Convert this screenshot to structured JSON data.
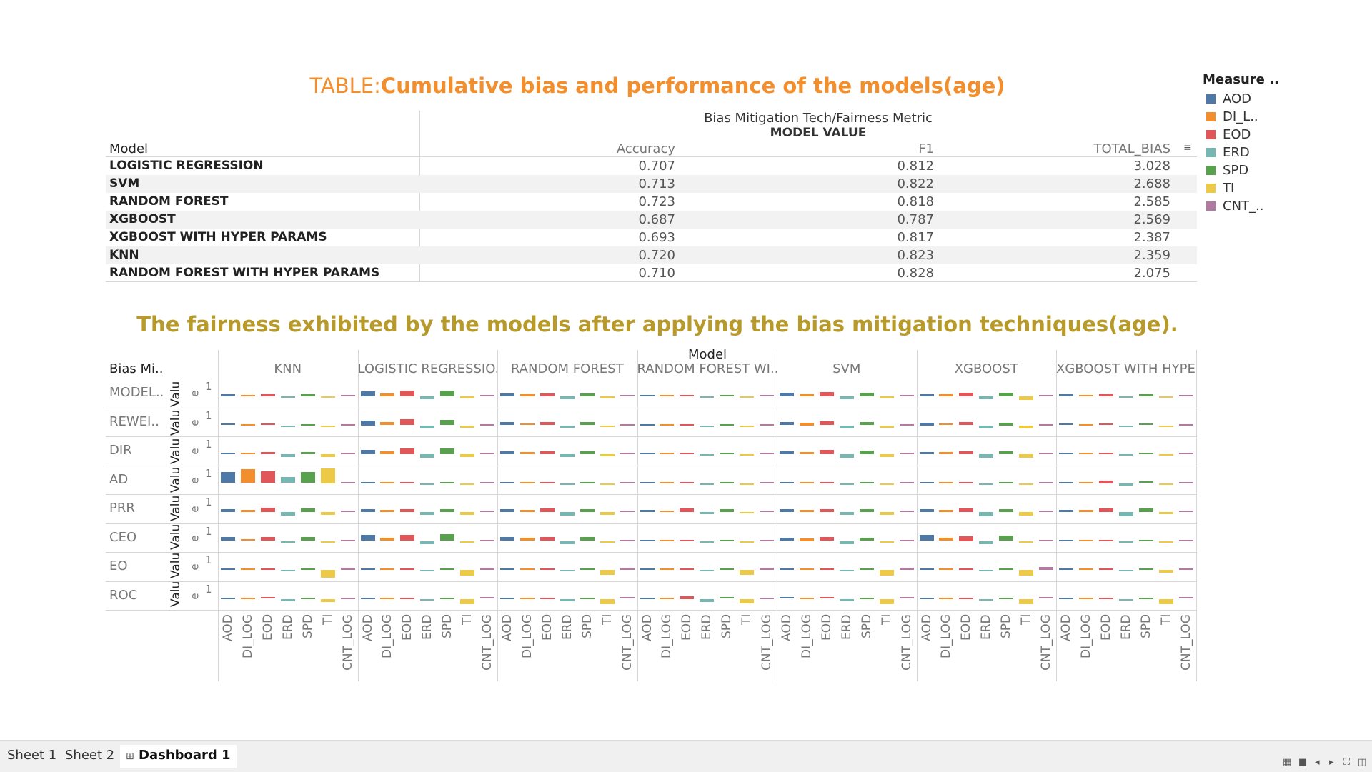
{
  "table": {
    "title_prefix": "TABLE:",
    "title_main": "Cumulative bias and performance of the models(age)",
    "header_line1": "Bias Mitigation Tech/Fairness Metric",
    "header_line2": "MODEL VALUE",
    "row_header": "Model",
    "columns": [
      "Accuracy",
      "F1",
      "TOTAL_BIAS"
    ],
    "sort_icon": "sort-descending-icon",
    "rows": [
      {
        "model": "LOGISTIC REGRESSION",
        "accuracy": "0.707",
        "f1": "0.812",
        "total_bias": "3.028"
      },
      {
        "model": "SVM",
        "accuracy": "0.713",
        "f1": "0.822",
        "total_bias": "2.688"
      },
      {
        "model": "RANDOM FOREST",
        "accuracy": "0.723",
        "f1": "0.818",
        "total_bias": "2.585"
      },
      {
        "model": "XGBOOST",
        "accuracy": "0.687",
        "f1": "0.787",
        "total_bias": "2.569"
      },
      {
        "model": "XGBOOST WITH HYPER PARAMS",
        "accuracy": "0.693",
        "f1": "0.817",
        "total_bias": "2.387"
      },
      {
        "model": "KNN",
        "accuracy": "0.720",
        "f1": "0.823",
        "total_bias": "2.359"
      },
      {
        "model": "RANDOM FOREST WITH HYPER PARAMS",
        "accuracy": "0.710",
        "f1": "0.828",
        "total_bias": "2.075"
      }
    ]
  },
  "legend": {
    "title": "Measure ..",
    "items": [
      {
        "label": "AOD",
        "color": "#4e79a7"
      },
      {
        "label": "DI_L..",
        "color": "#f28e2b"
      },
      {
        "label": "EOD",
        "color": "#e15759"
      },
      {
        "label": "ERD",
        "color": "#76b7b2"
      },
      {
        "label": "SPD",
        "color": "#59a14f"
      },
      {
        "label": "TI",
        "color": "#edc948"
      },
      {
        "label": "CNT_..",
        "color": "#b07aa1"
      }
    ]
  },
  "chart": {
    "title": "The fairness exhibited by the models after applying the bias mitigation techniques(age).",
    "column_header": "Model",
    "row_header": "Bias Mi..",
    "axis_label": "Valu",
    "axis_tick_e": "e",
    "axis_tick_1": "1",
    "models": [
      "KNN",
      "LOGISTIC REGRESSIO..",
      "RANDOM FOREST",
      "RANDOM FOREST WI..",
      "SVM",
      "XGBOOST",
      "XGBOOST WITH HYPE.."
    ],
    "techniques": [
      "MODEL..",
      "REWEI..",
      "DIR",
      "AD",
      "PRR",
      "CEO",
      "EO",
      "ROC"
    ],
    "measures": [
      "AOD",
      "DI_LOG",
      "EOD",
      "ERD",
      "SPD",
      "TI",
      "CNT_LOG"
    ]
  },
  "chart_data": {
    "type": "bar",
    "note_units": "values are relative bar heights (signed); baseline 0",
    "measures": [
      "AOD",
      "DI_LOG",
      "EOD",
      "ERD",
      "SPD",
      "TI",
      "CNT_LOG"
    ],
    "techniques": [
      "MODEL..",
      "REWEI..",
      "DIR",
      "AD",
      "PRR",
      "CEO",
      "EO",
      "ROC"
    ],
    "models": [
      "KNN",
      "LOGISTIC REGRESSIO..",
      "RANDOM FOREST",
      "RANDOM FOREST WI..",
      "SVM",
      "XGBOOST",
      "XGBOOST WITH HYPE.."
    ],
    "values": {
      "KNN": [
        [
          -0.2,
          -0.1,
          -0.25,
          0.15,
          -0.2,
          0.1,
          -0.05
        ],
        [
          -0.15,
          -0.05,
          -0.15,
          0.05,
          -0.1,
          0.2,
          -0.05
        ],
        [
          -0.1,
          -0.15,
          -0.2,
          0.3,
          -0.2,
          0.3,
          -0.05
        ],
        [
          -1.1,
          -1.4,
          -1.2,
          -0.6,
          -1.1,
          -1.5,
          -0.05
        ],
        [
          -0.3,
          -0.2,
          -0.4,
          0.35,
          -0.35,
          0.25,
          -0.05
        ],
        [
          -0.4,
          -0.2,
          -0.4,
          0.15,
          -0.4,
          0.1,
          -0.05
        ],
        [
          -0.05,
          -0.05,
          -0.05,
          0.05,
          -0.05,
          0.8,
          -0.25
        ],
        [
          -0.1,
          -0.05,
          -0.15,
          0.25,
          -0.1,
          0.3,
          -0.1
        ]
      ],
      "LOGISTIC REGRESSIO..": [
        [
          -0.5,
          -0.3,
          -0.6,
          0.3,
          -0.6,
          0.2,
          -0.05
        ],
        [
          -0.5,
          -0.3,
          -0.6,
          0.35,
          -0.55,
          0.25,
          -0.05
        ],
        [
          -0.4,
          -0.3,
          -0.6,
          0.35,
          -0.55,
          0.3,
          -0.05
        ],
        [
          -0.05,
          -0.05,
          -0.05,
          0.05,
          -0.05,
          0.05,
          -0.05
        ],
        [
          -0.3,
          -0.2,
          -0.3,
          0.3,
          -0.3,
          0.25,
          -0.05
        ],
        [
          -0.6,
          -0.35,
          -0.6,
          0.3,
          -0.65,
          0.15,
          -0.05
        ],
        [
          -0.05,
          -0.05,
          -0.05,
          0.05,
          -0.05,
          0.55,
          -0.2
        ],
        [
          -0.1,
          -0.05,
          -0.1,
          0.2,
          -0.1,
          0.55,
          -0.15
        ]
      ],
      "RANDOM FOREST": [
        [
          -0.3,
          -0.2,
          -0.3,
          0.25,
          -0.3,
          0.2,
          -0.05
        ],
        [
          -0.3,
          -0.2,
          -0.3,
          0.25,
          -0.3,
          0.2,
          -0.05
        ],
        [
          -0.3,
          -0.2,
          -0.3,
          0.25,
          -0.3,
          0.2,
          -0.05
        ],
        [
          -0.05,
          -0.05,
          -0.05,
          0.05,
          -0.05,
          0.05,
          -0.05
        ],
        [
          -0.3,
          -0.2,
          -0.35,
          0.35,
          -0.3,
          0.25,
          -0.05
        ],
        [
          -0.4,
          -0.3,
          -0.4,
          0.3,
          -0.4,
          0.2,
          -0.05
        ],
        [
          -0.05,
          -0.05,
          -0.05,
          0.05,
          -0.05,
          0.5,
          -0.2
        ],
        [
          -0.1,
          -0.05,
          -0.1,
          0.25,
          -0.1,
          0.5,
          -0.15
        ]
      ],
      "RANDOM FOREST WI..": [
        [
          -0.05,
          -0.05,
          -0.05,
          0.05,
          -0.05,
          0.05,
          -0.05
        ],
        [
          -0.05,
          -0.05,
          -0.05,
          0.05,
          -0.05,
          0.05,
          -0.05
        ],
        [
          -0.05,
          -0.05,
          -0.05,
          0.05,
          -0.05,
          0.05,
          -0.05
        ],
        [
          -0.05,
          -0.05,
          -0.05,
          0.05,
          -0.05,
          0.05,
          -0.05
        ],
        [
          -0.25,
          -0.15,
          -0.35,
          0.2,
          -0.3,
          0.1,
          -0.05
        ],
        [
          -0.05,
          -0.05,
          -0.05,
          0.05,
          -0.05,
          0.05,
          -0.05
        ],
        [
          -0.05,
          -0.05,
          -0.05,
          0.05,
          -0.05,
          0.5,
          -0.2
        ],
        [
          -0.1,
          -0.05,
          -0.25,
          0.3,
          -0.15,
          0.45,
          -0.1
        ]
      ],
      "SVM": [
        [
          -0.35,
          -0.25,
          -0.4,
          0.25,
          -0.35,
          0.2,
          -0.05
        ],
        [
          -0.3,
          -0.25,
          -0.4,
          0.3,
          -0.35,
          0.25,
          -0.05
        ],
        [
          -0.3,
          -0.25,
          -0.45,
          0.35,
          -0.35,
          0.25,
          -0.05
        ],
        [
          -0.05,
          -0.05,
          -0.05,
          0.05,
          -0.05,
          0.05,
          -0.05
        ],
        [
          -0.3,
          -0.2,
          -0.3,
          0.3,
          -0.3,
          0.25,
          -0.05
        ],
        [
          -0.35,
          -0.25,
          -0.4,
          0.3,
          -0.35,
          0.2,
          -0.05
        ],
        [
          -0.05,
          -0.05,
          -0.05,
          0.05,
          -0.05,
          0.55,
          -0.2
        ],
        [
          -0.15,
          -0.05,
          -0.15,
          0.25,
          -0.1,
          0.5,
          -0.15
        ]
      ],
      "XGBOOST": [
        [
          -0.25,
          -0.25,
          -0.35,
          0.3,
          -0.35,
          0.35,
          -0.05
        ],
        [
          -0.25,
          -0.2,
          -0.3,
          0.3,
          -0.25,
          0.35,
          -0.05
        ],
        [
          -0.2,
          -0.2,
          -0.3,
          0.35,
          -0.3,
          0.35,
          -0.05
        ],
        [
          -0.05,
          -0.05,
          -0.05,
          0.05,
          -0.05,
          0.05,
          -0.05
        ],
        [
          -0.3,
          -0.2,
          -0.35,
          0.4,
          -0.3,
          0.35,
          -0.05
        ],
        [
          -0.6,
          -0.3,
          -0.5,
          0.35,
          -0.55,
          0.1,
          -0.05
        ],
        [
          -0.05,
          -0.05,
          -0.05,
          0.05,
          -0.05,
          0.55,
          -0.3
        ],
        [
          -0.1,
          -0.05,
          -0.1,
          0.2,
          -0.1,
          0.55,
          -0.15
        ]
      ],
      "XGBOOST WITH HYPE..": [
        [
          -0.2,
          -0.15,
          -0.2,
          0.15,
          -0.2,
          0.15,
          -0.05
        ],
        [
          -0.15,
          -0.1,
          -0.15,
          0.1,
          -0.15,
          0.15,
          -0.05
        ],
        [
          -0.1,
          -0.1,
          -0.15,
          0.15,
          -0.15,
          0.15,
          -0.05
        ],
        [
          -0.05,
          -0.05,
          -0.25,
          0.25,
          -0.2,
          0.1,
          -0.05
        ],
        [
          -0.25,
          -0.2,
          -0.35,
          0.4,
          -0.35,
          0.2,
          -0.05
        ],
        [
          -0.05,
          -0.05,
          -0.05,
          0.05,
          -0.05,
          0.05,
          -0.05
        ],
        [
          -0.05,
          -0.05,
          -0.05,
          0.05,
          -0.05,
          0.3,
          -0.1
        ],
        [
          -0.1,
          -0.05,
          -0.1,
          0.1,
          -0.05,
          0.55,
          -0.15
        ]
      ]
    }
  },
  "tabs": [
    "Sheet 1",
    "Sheet 2",
    "Dashboard 1"
  ],
  "active_tab": "Dashboard 1"
}
